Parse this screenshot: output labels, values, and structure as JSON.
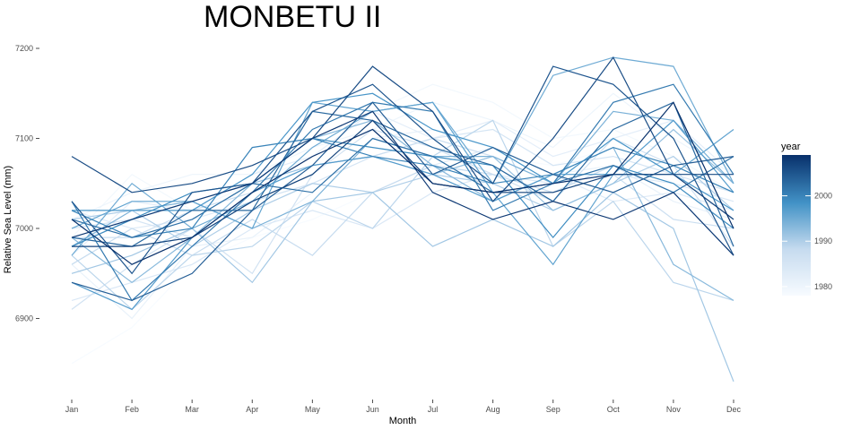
{
  "chart_data": {
    "type": "line",
    "title": "MONBETU II",
    "xlabel": "Month",
    "ylabel": "Relative Sea Level (mm)",
    "categories": [
      "Jan",
      "Feb",
      "Mar",
      "Apr",
      "May",
      "Jun",
      "Jul",
      "Aug",
      "Sep",
      "Oct",
      "Nov",
      "Dec"
    ],
    "ylim": [
      6820,
      7230
    ],
    "yticks": [
      6900,
      7000,
      7100,
      7200
    ],
    "grid": false,
    "legend": {
      "title": "year",
      "type": "continuous",
      "range": [
        1978,
        2009
      ],
      "ticks": [
        1980,
        1990,
        2000
      ],
      "color_low": "#f7fbff",
      "color_high": "#08306b",
      "position": "right"
    },
    "series": [
      {
        "year": 1978,
        "values": [
          6850,
          6890,
          6960,
          6990,
          7010,
          7040,
          7060,
          7080,
          7070,
          7090,
          7050,
          7020
        ]
      },
      {
        "year": 1979,
        "values": [
          6990,
          7060,
          7020,
          7050,
          7080,
          7130,
          7160,
          7140,
          7100,
          7110,
          7080,
          7040
        ]
      },
      {
        "year": 1980,
        "values": [
          7010,
          7040,
          7060,
          7060,
          7090,
          7110,
          7140,
          7120,
          7090,
          7150,
          7100,
          7060
        ]
      },
      {
        "year": 1981,
        "values": [
          6960,
          6900,
          6980,
          6990,
          7040,
          7100,
          7110,
          7090,
          7060,
          7070,
          7030,
          7010
        ]
      },
      {
        "year": 1982,
        "values": [
          6970,
          7030,
          7020,
          7060,
          7080,
          7130,
          7100,
          7120,
          7080,
          7100,
          7120,
          7060
        ]
      },
      {
        "year": 1983,
        "values": [
          7020,
          7000,
          7010,
          7030,
          7050,
          7040,
          7070,
          7090,
          7060,
          7030,
          7040,
          7020
        ]
      },
      {
        "year": 1984,
        "values": [
          6920,
          6940,
          6960,
          7000,
          7020,
          7000,
          7040,
          7060,
          7050,
          7060,
          7050,
          7030
        ]
      },
      {
        "year": 1985,
        "values": [
          7000,
          7010,
          6990,
          7030,
          7050,
          7080,
          7100,
          7110,
          7070,
          7080,
          7060,
          7040
        ]
      },
      {
        "year": 1986,
        "values": [
          6910,
          6960,
          7000,
          6950,
          7060,
          7110,
          7090,
          7060,
          7030,
          7100,
          7070,
          6980
        ]
      },
      {
        "year": 1987,
        "values": [
          6990,
          6990,
          7020,
          7040,
          7070,
          7080,
          7100,
          7080,
          7050,
          7060,
          7010,
          7000
        ]
      },
      {
        "year": 1988,
        "values": [
          6960,
          7000,
          6970,
          7010,
          6970,
          7040,
          7070,
          7060,
          7040,
          7070,
          7040,
          6970
        ]
      },
      {
        "year": 1989,
        "values": [
          6970,
          6910,
          6970,
          6980,
          7030,
          7000,
          7080,
          7120,
          6980,
          7030,
          6940,
          6920
        ]
      },
      {
        "year": 1990,
        "values": [
          7010,
          7020,
          6980,
          7020,
          7050,
          7040,
          7060,
          7050,
          7020,
          7050,
          7080,
          7020
        ]
      },
      {
        "year": 1991,
        "values": [
          6950,
          6970,
          7000,
          6940,
          7030,
          7040,
          6980,
          7010,
          6980,
          7040,
          7000,
          6830
        ]
      },
      {
        "year": 1992,
        "values": [
          6980,
          7010,
          7030,
          7050,
          7070,
          7080,
          7060,
          7080,
          7020,
          7050,
          7110,
          7050
        ]
      },
      {
        "year": 1993,
        "values": [
          6990,
          6940,
          6990,
          7050,
          7100,
          7120,
          7070,
          7030,
          7060,
          7090,
          6960,
          6920
        ]
      },
      {
        "year": 1994,
        "values": [
          6980,
          7020,
          7030,
          7000,
          7030,
          7100,
          7080,
          7080,
          7050,
          7130,
          7120,
          7050
        ]
      },
      {
        "year": 1995,
        "values": [
          6970,
          7050,
          7000,
          7030,
          7090,
          7130,
          7140,
          7050,
          7170,
          7190,
          7180,
          7050
        ]
      },
      {
        "year": 1996,
        "values": [
          7000,
          7030,
          7030,
          7000,
          7140,
          7130,
          7140,
          7040,
          6960,
          7060,
          7060,
          7110
        ]
      },
      {
        "year": 1997,
        "values": [
          6940,
          6910,
          6990,
          7040,
          7070,
          7080,
          7060,
          7030,
          7060,
          7060,
          7120,
          7040
        ]
      },
      {
        "year": 1998,
        "values": [
          7020,
          7020,
          7020,
          7060,
          7140,
          7150,
          7110,
          7090,
          7050,
          7100,
          7060,
          7020
        ]
      },
      {
        "year": 1999,
        "values": [
          6980,
          7010,
          7040,
          7050,
          7100,
          7090,
          7080,
          7070,
          6990,
          7070,
          7050,
          7000
        ]
      },
      {
        "year": 2000,
        "values": [
          7020,
          6990,
          7000,
          7090,
          7100,
          7080,
          7070,
          7050,
          7060,
          7090,
          7070,
          7040
        ]
      },
      {
        "year": 2001,
        "values": [
          7030,
          6920,
          6980,
          7040,
          7110,
          7140,
          7130,
          7020,
          7050,
          7140,
          7160,
          7060
        ]
      },
      {
        "year": 2002,
        "values": [
          7010,
          6990,
          7010,
          7050,
          7040,
          7100,
          7080,
          7040,
          7050,
          7070,
          7040,
          7080
        ]
      },
      {
        "year": 2003,
        "values": [
          6990,
          6980,
          7020,
          7020,
          7130,
          7120,
          7090,
          7070,
          7030,
          7110,
          7140,
          6980
        ]
      },
      {
        "year": 2004,
        "values": [
          6940,
          6920,
          6950,
          7020,
          7070,
          7140,
          7060,
          7090,
          7060,
          7040,
          7070,
          7080
        ]
      },
      {
        "year": 2005,
        "values": [
          7030,
          6950,
          7040,
          7050,
          7130,
          7160,
          7100,
          7050,
          7180,
          7160,
          7100,
          6970
        ]
      },
      {
        "year": 2006,
        "values": [
          7080,
          7040,
          7050,
          7070,
          7100,
          7180,
          7130,
          7030,
          7100,
          7190,
          7060,
          7060
        ]
      },
      {
        "year": 2007,
        "values": [
          6980,
          6980,
          6990,
          7030,
          7060,
          7120,
          7050,
          7040,
          7040,
          7060,
          7060,
          7010
        ]
      },
      {
        "year": 2008,
        "values": [
          6990,
          7010,
          7030,
          7050,
          7100,
          7130,
          7040,
          7010,
          7030,
          7010,
          7040,
          6970
        ]
      },
      {
        "year": 2009,
        "values": [
          7010,
          6960,
          6990,
          7040,
          7080,
          7110,
          7050,
          7040,
          7050,
          7060,
          7140,
          7000
        ]
      }
    ]
  }
}
